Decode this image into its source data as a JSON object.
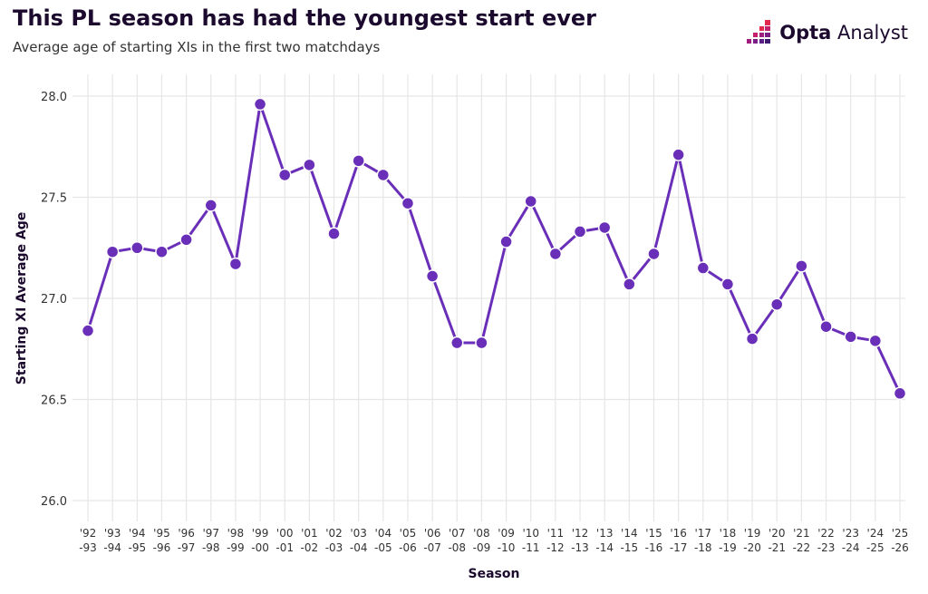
{
  "header": {
    "title": "This PL season has had the youngest start ever",
    "subtitle": "Average age of starting XIs in the first two matchdays"
  },
  "logo": {
    "brand": "Opta",
    "product": "Analyst",
    "icon": "opta-logo-icon"
  },
  "colors": {
    "series": "#6a2fb8",
    "grid": "#e6e6e6",
    "title": "#1b0a2e"
  },
  "chart_data": {
    "type": "line",
    "xlabel": "Season",
    "ylabel": "Starting XI Average Age",
    "ylim": [
      26.0,
      28.0
    ],
    "yticks": [
      "26.0",
      "26.5",
      "27.0",
      "27.5",
      "28.0"
    ],
    "grid": true,
    "categories": [
      [
        "'92",
        "-93"
      ],
      [
        "'93",
        "-94"
      ],
      [
        "'94",
        "-95"
      ],
      [
        "'95",
        "-96"
      ],
      [
        "'96",
        "-97"
      ],
      [
        "'97",
        "-98"
      ],
      [
        "'98",
        "-99"
      ],
      [
        "'99",
        "-00"
      ],
      [
        "'00",
        "-01"
      ],
      [
        "'01",
        "-02"
      ],
      [
        "'02",
        "-03"
      ],
      [
        "'03",
        "-04"
      ],
      [
        "'04",
        "-05"
      ],
      [
        "'05",
        "-06"
      ],
      [
        "'06",
        "-07"
      ],
      [
        "'07",
        "-08"
      ],
      [
        "'08",
        "-09"
      ],
      [
        "'09",
        "-10"
      ],
      [
        "'10",
        "-11"
      ],
      [
        "'11",
        "-12"
      ],
      [
        "'12",
        "-13"
      ],
      [
        "'13",
        "-14"
      ],
      [
        "'14",
        "-15"
      ],
      [
        "'15",
        "-16"
      ],
      [
        "'16",
        "-17"
      ],
      [
        "'17",
        "-18"
      ],
      [
        "'18",
        "-19"
      ],
      [
        "'19",
        "-20"
      ],
      [
        "'20",
        "-21"
      ],
      [
        "'21",
        "-22"
      ],
      [
        "'22",
        "-23"
      ],
      [
        "'23",
        "-24"
      ],
      [
        "'24",
        "-25"
      ],
      [
        "'25",
        "-26"
      ]
    ],
    "series": [
      {
        "values": [
          26.84,
          27.23,
          27.25,
          27.23,
          27.29,
          27.46,
          27.17,
          27.96,
          27.61,
          27.66,
          27.32,
          27.68,
          27.61,
          27.47,
          27.11,
          26.78,
          26.78,
          27.28,
          27.48,
          27.22,
          27.33,
          27.35,
          27.07,
          27.22,
          27.71,
          27.15,
          27.07,
          26.8,
          26.97,
          27.16,
          26.86,
          26.81,
          26.79,
          26.53
        ]
      }
    ]
  }
}
